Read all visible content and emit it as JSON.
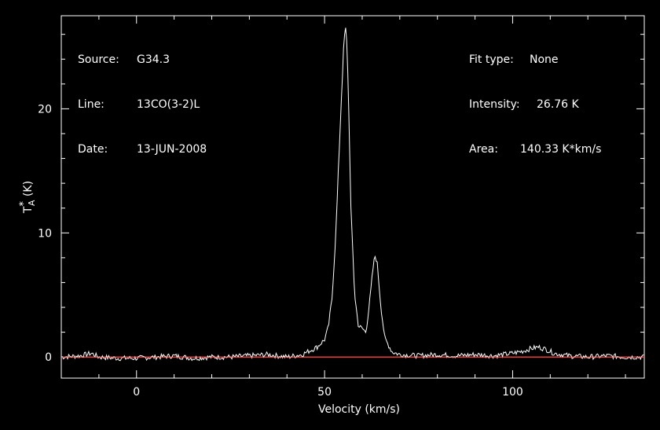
{
  "info_left": [
    {
      "label": "Source:",
      "value": "G34.3"
    },
    {
      "label": "Line:",
      "value": "13CO(3-2)L"
    },
    {
      "label": "Date:",
      "value": "13-JUN-2008"
    }
  ],
  "info_right": [
    {
      "label": "Fit type:",
      "value": "None"
    },
    {
      "label": "Intensity:",
      "value": "26.76 K"
    },
    {
      "label": "Area:",
      "value": "140.33 K*km/s"
    }
  ],
  "colors": {
    "background": "#000000",
    "spectrum": "#ffffff",
    "baseline": "#ff3b3b",
    "axes": "#ffffff"
  },
  "chart_data": {
    "type": "line",
    "title": "",
    "xlabel": "Velocity (km/s)",
    "ylabel": "T*A (K)",
    "xlim": [
      -20,
      135
    ],
    "ylim": [
      -1.7,
      27.5
    ],
    "xticks": [
      0,
      50,
      100
    ],
    "yticks": [
      0,
      10,
      20
    ],
    "grid": false,
    "legend": "none",
    "series": [
      {
        "x": [
          -20,
          -15,
          -12,
          -10,
          -5,
          0,
          5,
          10,
          15,
          20,
          25,
          30,
          35,
          40,
          44,
          46,
          48,
          50,
          51,
          52,
          53,
          54,
          55,
          55.5,
          56,
          56.5,
          57,
          58,
          59,
          60,
          61,
          62,
          63,
          63.5,
          64,
          65,
          66,
          68,
          70,
          75,
          80,
          85,
          90,
          95,
          100,
          103,
          105,
          107,
          109,
          111,
          115,
          120,
          125,
          130,
          135
        ],
        "y": [
          0.0,
          0.1,
          0.3,
          0.0,
          -0.1,
          -0.1,
          0.0,
          0.1,
          -0.1,
          0.0,
          0.0,
          0.1,
          0.2,
          0.0,
          0.2,
          0.5,
          0.8,
          1.4,
          2.4,
          4.8,
          10.0,
          17.5,
          24.5,
          26.76,
          25.0,
          19.0,
          12.0,
          5.0,
          2.5,
          2.3,
          2.0,
          4.5,
          7.5,
          8.2,
          7.5,
          4.0,
          1.5,
          0.4,
          0.2,
          0.1,
          0.2,
          0.1,
          0.2,
          0.1,
          0.3,
          0.5,
          0.7,
          0.8,
          0.6,
          0.3,
          0.1,
          0.0,
          0.1,
          0.0,
          0.0
        ]
      }
    ],
    "baseline_y": 0
  }
}
